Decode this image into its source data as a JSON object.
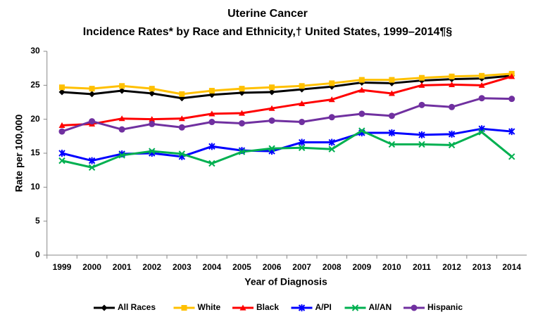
{
  "chart_data": {
    "type": "line",
    "title": "Uterine Cancer",
    "subtitle": "Incidence Rates* by Race and Ethnicity,† United States, 1999–2014¶§",
    "x_label": "Year of Diagnosis",
    "y_label": "Rate per 100,000",
    "categories": [
      1999,
      2000,
      2001,
      2002,
      2003,
      2004,
      2005,
      2006,
      2007,
      2008,
      2009,
      2010,
      2011,
      2012,
      2013,
      2014
    ],
    "ylim": [
      0,
      30
    ],
    "yticks": [
      0,
      5,
      10,
      15,
      20,
      25,
      30
    ],
    "grid": false,
    "legend": "bottom",
    "series": [
      {
        "name": "All Races",
        "color": "#000000",
        "marker": "diamond",
        "values": [
          24.0,
          23.7,
          24.2,
          23.8,
          23.1,
          23.6,
          23.9,
          24.0,
          24.4,
          24.8,
          25.4,
          25.3,
          25.7,
          25.9,
          26.0,
          26.4
        ]
      },
      {
        "name": "White",
        "color": "#FFC000",
        "marker": "square",
        "values": [
          24.7,
          24.5,
          24.9,
          24.5,
          23.7,
          24.2,
          24.5,
          24.7,
          24.9,
          25.3,
          25.8,
          25.8,
          26.1,
          26.3,
          26.4,
          26.7
        ]
      },
      {
        "name": "Black",
        "color": "#FF0000",
        "marker": "triangle",
        "values": [
          19.1,
          19.3,
          20.1,
          20.0,
          20.1,
          20.8,
          20.9,
          21.6,
          22.3,
          22.9,
          24.3,
          23.8,
          25.0,
          25.1,
          25.0,
          26.3
        ]
      },
      {
        "name": "A/PI",
        "color": "#0000FF",
        "marker": "star",
        "values": [
          15.0,
          13.9,
          14.9,
          15.0,
          14.5,
          16.0,
          15.4,
          15.3,
          16.6,
          16.6,
          18.0,
          18.0,
          17.7,
          17.8,
          18.6,
          18.2
        ]
      },
      {
        "name": "AI/AN",
        "color": "#00B050",
        "marker": "x",
        "values": [
          13.9,
          12.9,
          14.7,
          15.3,
          14.9,
          13.5,
          15.2,
          15.7,
          15.8,
          15.6,
          18.3,
          16.3,
          16.3,
          16.2,
          18.1,
          14.5
        ]
      },
      {
        "name": "Hispanic",
        "color": "#7030A0",
        "marker": "circle",
        "values": [
          18.2,
          19.7,
          18.5,
          19.3,
          18.8,
          19.6,
          19.4,
          19.8,
          19.6,
          20.3,
          20.8,
          20.5,
          22.1,
          21.8,
          23.1,
          23.0
        ]
      }
    ]
  }
}
